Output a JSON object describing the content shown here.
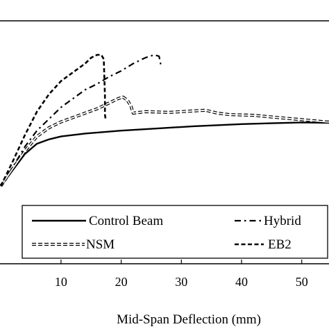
{
  "chart_data": {
    "type": "line",
    "xlabel": "Mid-Span Deflection (mm)",
    "ylabel": "",
    "xlim": [
      0,
      60
    ],
    "xticks": [
      10,
      20,
      30,
      40,
      50
    ],
    "xtick_labels": [
      "10",
      "20",
      "30",
      "40",
      "50"
    ],
    "grid": false,
    "legend_position": "bottom",
    "series": [
      {
        "name": "Control Beam",
        "style": "solid",
        "color": "#000000",
        "x": [
          0,
          2,
          4,
          6,
          8,
          10,
          14,
          20,
          26,
          32,
          40,
          46,
          50,
          56,
          60
        ],
        "y": [
          0,
          11,
          22,
          29,
          32,
          34,
          36,
          38,
          39.5,
          41,
          42.5,
          43.2,
          43.6,
          43.3,
          43
        ]
      },
      {
        "name": "Hybrid",
        "style": "dash-dot",
        "color": "#000000",
        "x": [
          0,
          2,
          4,
          6,
          8,
          10,
          12,
          14,
          16,
          18,
          20,
          22,
          24,
          25.5,
          26.3,
          26.6,
          26.4
        ],
        "y": [
          0,
          13,
          27,
          38,
          46,
          54,
          60,
          66,
          70,
          75,
          79,
          84,
          88,
          90,
          89,
          83,
          82
        ]
      },
      {
        "name": "NSM",
        "style": "double-dashed",
        "color": "#000000",
        "x": [
          0,
          2,
          4,
          6,
          8,
          10,
          12,
          14,
          16,
          18,
          19.5,
          20.3,
          21,
          21.6,
          22,
          24,
          28,
          32,
          34,
          36,
          38,
          42,
          46,
          50,
          54,
          60
        ],
        "y": [
          0,
          12,
          24,
          34,
          40,
          44,
          47,
          50,
          53,
          57,
          60,
          61,
          59,
          55,
          50,
          51,
          50.5,
          51.5,
          52,
          50,
          49,
          48.5,
          47,
          45.5,
          44,
          43
        ]
      },
      {
        "name": "EB2",
        "style": "dashed",
        "color": "#000000",
        "x": [
          0,
          2,
          4,
          6,
          8,
          10,
          12,
          14,
          15,
          16,
          16.7,
          17.1,
          17.3,
          17.3,
          17.4
        ],
        "y": [
          0,
          17,
          35,
          51,
          63,
          72,
          78,
          84,
          88,
          90,
          90,
          87,
          62,
          49,
          46
        ]
      }
    ]
  }
}
